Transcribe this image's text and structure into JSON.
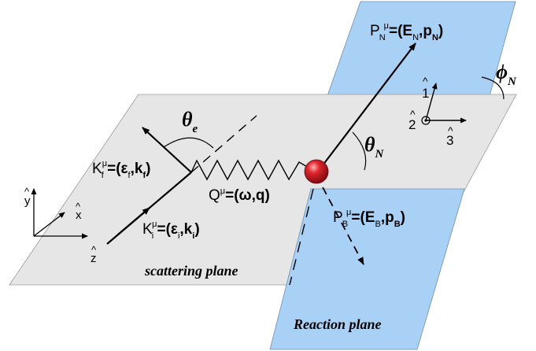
{
  "labels": {
    "theta_e": "θ",
    "theta_e_sub": "e",
    "theta_n": "θ",
    "theta_n_sub": "N",
    "phi_n": "ϕ",
    "phi_n_sub": "N",
    "kf_base": "K",
    "kf_sub": "f",
    "kf_sup": "μ",
    "kf_eq": "=(ε",
    "kf_eq_sub": "f",
    "kf_comma": ",",
    "kf_vec": "k",
    "kf_vec_sub": "f",
    "kf_close": ")",
    "ki_base": "K",
    "ki_sub": "i",
    "ki_sup": "μ",
    "ki_eq": "=(ε",
    "ki_eq_sub": "i",
    "ki_comma": ",",
    "ki_vec": "k",
    "ki_vec_sub": "i",
    "ki_close": ")",
    "q_base": "Q",
    "q_sup": "μ",
    "q_eq": "=(ω,",
    "q_vec": "q",
    "q_close": ")",
    "pn_base": "P",
    "pn_sub": "N",
    "pn_sup": "μ",
    "pn_eq": "=(E",
    "pn_eq_sub": "N",
    "pn_comma": ",",
    "pn_vec": "p",
    "pn_vec_sub": "N",
    "pn_close": ")",
    "pb_base": "P",
    "pb_sub": "B",
    "pb_sup": "μ",
    "pb_eq": "=(E",
    "pb_eq_sub": "B",
    "pb_comma": ",",
    "pb_vec": "p",
    "pb_vec_sub": "B",
    "pb_close": ")",
    "axis_1": "1",
    "axis_2": "2",
    "axis_3": "3",
    "axis_x": "x",
    "axis_y": "y",
    "axis_z": "z",
    "hat": "^",
    "scattering_plane": "scattering plane",
    "reaction_plane": "Reaction plane"
  },
  "colors": {
    "scattering_plane_fill": "#e6e6e6",
    "reaction_plane_fill": "#a9d0f5",
    "nucleus_fill": "#c0141b",
    "line": "#000000"
  }
}
